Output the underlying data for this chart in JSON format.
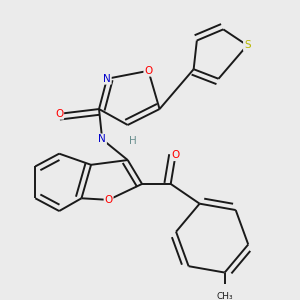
{
  "background_color": "#ebebeb",
  "bond_color": "#1a1a1a",
  "atom_colors": {
    "O": "#ff0000",
    "N": "#0000cc",
    "S": "#b8b800",
    "H": "#6a9090",
    "C": "#1a1a1a"
  },
  "figsize": [
    3.0,
    3.0
  ],
  "dpi": 100
}
